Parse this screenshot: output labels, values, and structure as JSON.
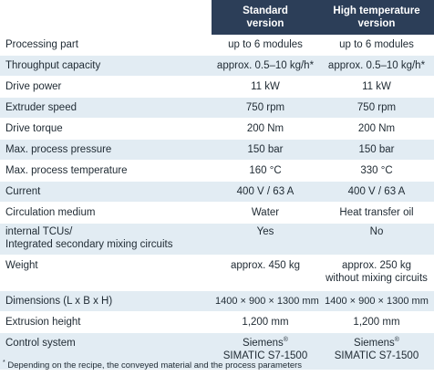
{
  "header": {
    "standard": [
      "Standard",
      "version"
    ],
    "high_temp": [
      "High temperature",
      "version"
    ]
  },
  "rows": [
    {
      "label": "Processing part",
      "standard": "up to 6 modules",
      "high_temp": "up to 6 modules"
    },
    {
      "label": "Throughput capacity",
      "standard": "approx. 0.5–10 kg/h*",
      "high_temp": "approx. 0.5–10 kg/h*"
    },
    {
      "label": "Drive power",
      "standard": "11 kW",
      "high_temp": "11 kW"
    },
    {
      "label": "Extruder speed",
      "standard": "750 rpm",
      "high_temp": "750 rpm"
    },
    {
      "label": "Drive torque",
      "standard": "200 Nm",
      "high_temp": "200 Nm"
    },
    {
      "label": "Max. process pressure",
      "standard": "150 bar",
      "high_temp": "150 bar"
    },
    {
      "label": "Max. process temperature",
      "standard": "160 °C",
      "high_temp": "330 °C"
    },
    {
      "label": "Current",
      "standard": "400 V / 63 A",
      "high_temp": "400 V / 63 A"
    },
    {
      "label": "Circulation medium",
      "standard": "Water",
      "high_temp": "Heat transfer oil"
    },
    {
      "label": [
        "internal TCUs/",
        "Integrated secondary mixing circuits"
      ],
      "standard": "Yes",
      "high_temp": "No"
    },
    {
      "label": "Weight",
      "standard": "approx. 450 kg",
      "high_temp": [
        "approx. 250 kg",
        "without mixing circuits"
      ]
    },
    {
      "label": "Dimensions (L x B x H)",
      "standard": "1400 × 900 × 1300 mm",
      "high_temp": "1400 × 900 × 1300 mm"
    },
    {
      "label": "Extrusion height",
      "standard": "1,200 mm",
      "high_temp": "1,200 mm"
    },
    {
      "label": "Control system",
      "standard": [
        "Siemens",
        "®",
        "SIMATIC S7-1500"
      ],
      "high_temp": [
        "Siemens",
        "®",
        "SIMATIC S7-1500"
      ]
    }
  ],
  "footnote": {
    "marker": "*",
    "text": "Depending on the recipe, the conveyed material and the process parameters"
  },
  "colors": {
    "header_bg": "#2c3e58",
    "row_alt_bg": "#e2ecf3",
    "text": "#1f2a33"
  }
}
